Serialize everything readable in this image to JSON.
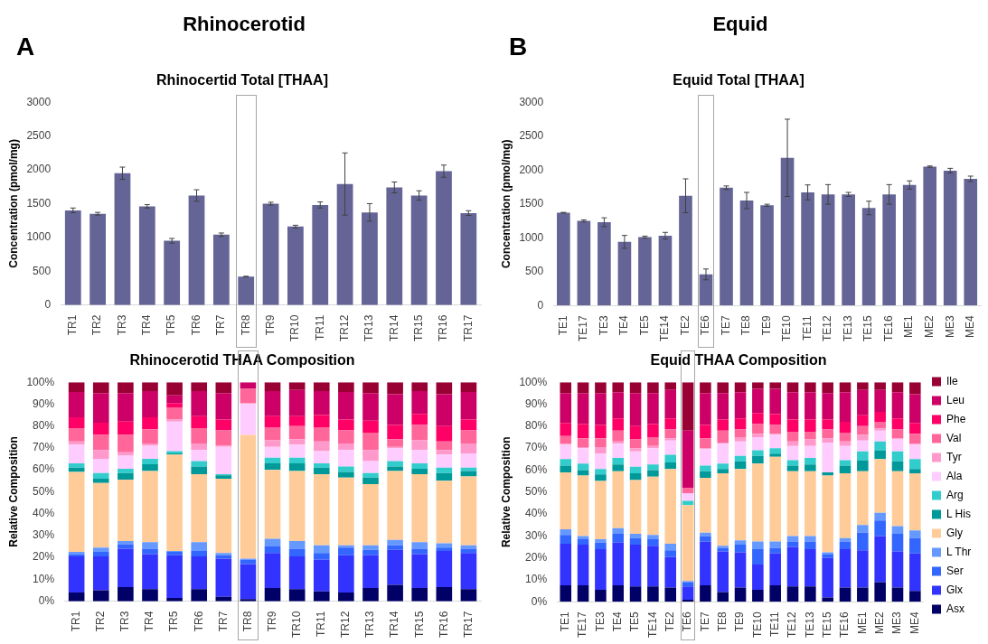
{
  "chart_data": [
    {
      "type": "bar",
      "title": "Rhinocertid Total [THAA]",
      "ylabel": "Concentration (pmol/mg)",
      "annotations": [
        "A",
        "Rhinocerotid"
      ],
      "categories": [
        "TR1",
        "TR2",
        "TR3",
        "TR4",
        "TR5",
        "TR6",
        "TR7",
        "TR8",
        "TR9",
        "TR10",
        "TR11",
        "TR12",
        "TR13",
        "TR14",
        "TR15",
        "TR16",
        "TR17"
      ],
      "values": [
        1400,
        1350,
        1950,
        1460,
        950,
        1620,
        1040,
        420,
        1500,
        1160,
        1480,
        1790,
        1370,
        1740,
        1620,
        1980,
        1360
      ],
      "errors": [
        35,
        20,
        90,
        25,
        35,
        85,
        25,
        5,
        20,
        20,
        45,
        460,
        130,
        80,
        70,
        90,
        35
      ],
      "color": "#646496",
      "ylim": [
        0,
        3000
      ],
      "yticks": [
        0,
        500,
        1000,
        1500,
        2000,
        2500,
        3000
      ]
    },
    {
      "type": "bar",
      "title": "Equid Total [THAA]",
      "ylabel": "Concentration (pmol/mg)",
      "annotations": [
        "B",
        "Equid"
      ],
      "categories": [
        "TE1",
        "TE17",
        "TE3",
        "TE4",
        "TE5",
        "TE14",
        "TE2",
        "TE6",
        "TE7",
        "TE8",
        "TE9",
        "TE10",
        "TE11",
        "TE12",
        "TE13",
        "TE15",
        "TE16",
        "ME1",
        "ME2",
        "ME3",
        "ME4"
      ],
      "values": [
        1370,
        1250,
        1230,
        940,
        1010,
        1030,
        1620,
        460,
        1740,
        1550,
        1480,
        2180,
        1670,
        1640,
        1640,
        1440,
        1640,
        1780,
        2050,
        1990,
        1870
      ],
      "errors": [
        5,
        15,
        65,
        95,
        15,
        50,
        250,
        80,
        25,
        120,
        15,
        570,
        110,
        145,
        30,
        100,
        145,
        60,
        10,
        35,
        40
      ],
      "color": "#646496",
      "ylim": [
        0,
        3000
      ],
      "yticks": [
        0,
        500,
        1000,
        1500,
        2000,
        2500,
        3000
      ]
    },
    {
      "type": "bar",
      "title": "Rhinocerotid THAA Composition",
      "ylabel": "Relative Composition",
      "stacked": true,
      "categories": [
        "TR1",
        "TR2",
        "TR3",
        "TR4",
        "TR5",
        "TR6",
        "TR7",
        "TR8",
        "TR9",
        "TR10",
        "TR11",
        "TR12",
        "TR13",
        "TR14",
        "TR15",
        "TR16",
        "TR17"
      ],
      "ylim": [
        0,
        100
      ],
      "yticks": [
        {
          "value": 0,
          "label": "0%"
        },
        {
          "value": 10,
          "label": "10%"
        },
        {
          "value": 20,
          "label": "20%"
        },
        {
          "value": 30,
          "label": "30%"
        },
        {
          "value": 40,
          "label": "40%"
        },
        {
          "value": 50,
          "label": "50%"
        },
        {
          "value": 60,
          "label": "60%"
        },
        {
          "value": 70,
          "label": "70%"
        },
        {
          "value": 80,
          "label": "80%"
        },
        {
          "value": 90,
          "label": "90%"
        },
        {
          "value": 100,
          "label": "100%"
        }
      ],
      "series": [
        {
          "color": "#000066",
          "values": [
            4,
            5,
            6.5,
            5.5,
            1.5,
            5.5,
            2,
            1,
            6,
            5.5,
            4.5,
            4,
            6,
            7.5,
            6,
            6.5,
            5.5
          ]
        },
        {
          "color": "#3333ff",
          "values": [
            16.5,
            15.5,
            17.5,
            16,
            19.5,
            15,
            17.5,
            16,
            16,
            15,
            14.5,
            17,
            15,
            16,
            15.5,
            16.5,
            16.5
          ]
        },
        {
          "color": "#3366ff",
          "values": [
            1,
            2,
            2,
            2.5,
            1.5,
            2.5,
            1.5,
            2,
            3,
            3.5,
            3,
            3.5,
            2.5,
            2,
            2.5,
            1.5,
            2
          ]
        },
        {
          "color": "#6699ff",
          "values": [
            1,
            2,
            1.5,
            3,
            0.5,
            4,
            1,
            0.5,
            3.5,
            3.5,
            3.5,
            1,
            2,
            2.5,
            3,
            2,
            1.5
          ]
        },
        {
          "color": "#ffcc99",
          "values": [
            36.5,
            29.5,
            28,
            32.5,
            44,
            31,
            34,
            56.5,
            31.5,
            32,
            32.5,
            31,
            28,
            31.5,
            31,
            28.5,
            31.5
          ]
        },
        {
          "color": "#009999",
          "values": [
            2,
            2,
            3,
            3,
            0.5,
            3.5,
            1.5,
            0,
            3,
            3.5,
            3,
            2.5,
            3,
            2,
            2.5,
            3.5,
            2.5
          ]
        },
        {
          "color": "#33cccc",
          "values": [
            2,
            2.5,
            2,
            2.5,
            1,
            2.5,
            0.5,
            0,
            2.5,
            2.5,
            2,
            2.5,
            2,
            2.5,
            2.5,
            2.5,
            1.5
          ]
        },
        {
          "color": "#ffccff",
          "values": [
            8.5,
            6.5,
            6,
            6,
            13.5,
            5,
            12.5,
            14,
            5,
            6,
            5.5,
            7.5,
            5.5,
            6,
            6,
            6,
            6.5
          ]
        },
        {
          "color": "#ff99cc",
          "values": [
            1.5,
            4,
            1.5,
            1,
            1,
            3,
            0.5,
            0.5,
            3,
            2.5,
            4.5,
            3,
            5,
            0.5,
            4.5,
            2,
            4.5
          ]
        },
        {
          "color": "#ff6699",
          "values": [
            6,
            7,
            8,
            6.5,
            5.5,
            7,
            7,
            6.5,
            6,
            6,
            6.5,
            6,
            8,
            3.5,
            7,
            4,
            6
          ]
        },
        {
          "color": "#ff0066",
          "values": [
            5,
            5.5,
            6,
            5.5,
            2,
            5.5,
            5,
            0,
            5,
            4.5,
            5.5,
            5,
            5.5,
            6.5,
            5,
            7,
            5
          ]
        },
        {
          "color": "#cc0066",
          "values": [
            11.5,
            13.5,
            13,
            12,
            3.5,
            11.5,
            12,
            3,
            11.5,
            12,
            11,
            12.5,
            12.5,
            14,
            10.5,
            14.5,
            12.5
          ]
        },
        {
          "color": "#990033",
          "values": [
            4.5,
            5,
            5,
            4,
            6,
            4,
            5,
            0,
            4,
            3.5,
            4,
            4.5,
            5,
            5.5,
            4,
            5.5,
            4.5
          ]
        }
      ]
    },
    {
      "type": "bar",
      "title": "Equid THAA Composition",
      "ylabel": "Relative Composition",
      "stacked": true,
      "legend": "right",
      "categories": [
        "TE1",
        "TE17",
        "TE3",
        "TE4",
        "TE5",
        "TE14",
        "TE2",
        "TE6",
        "TE7",
        "TE8",
        "TE9",
        "TE10",
        "TE11",
        "TE12",
        "TE13",
        "TE15",
        "TE16",
        "ME1",
        "ME2",
        "ME3",
        "ME4"
      ],
      "ylim": [
        0,
        100
      ],
      "yticks": [
        {
          "value": 0,
          "label": "0%"
        },
        {
          "value": 10,
          "label": "10%"
        },
        {
          "value": 20,
          "label": "20%"
        },
        {
          "value": 30,
          "label": "30%"
        },
        {
          "value": 40,
          "label": "40%"
        },
        {
          "value": 50,
          "label": "50%"
        },
        {
          "value": 60,
          "label": "60%"
        },
        {
          "value": 70,
          "label": "70%"
        },
        {
          "value": 80,
          "label": "80%"
        },
        {
          "value": 90,
          "label": "90%"
        },
        {
          "value": 100,
          "label": "100%"
        }
      ],
      "series": [
        {
          "name": "Asx",
          "color": "#000066",
          "values": [
            7.5,
            7.5,
            5.5,
            7.5,
            7,
            7,
            6.5,
            1,
            7.5,
            4.5,
            6.5,
            5.5,
            7.5,
            7,
            7,
            2,
            6.5,
            6.5,
            9,
            6.5,
            5
          ]
        },
        {
          "name": "Glx",
          "color": "#3333ff",
          "values": [
            19,
            18.5,
            18.5,
            19.5,
            19,
            18.5,
            14,
            6,
            20,
            18.5,
            16,
            11.5,
            14.5,
            18,
            17,
            18,
            17.5,
            17,
            21,
            16.5,
            17
          ]
        },
        {
          "name": "Ser",
          "color": "#3366ff",
          "values": [
            4,
            2.5,
            3,
            4,
            3,
            3,
            3,
            2,
            2.5,
            1.5,
            3.5,
            7,
            2.5,
            2.5,
            3.5,
            1.5,
            3.5,
            8,
            7,
            8,
            7
          ]
        },
        {
          "name": "L Thr",
          "color": "#6699ff",
          "values": [
            2.5,
            1.5,
            1.5,
            2.5,
            2,
            2,
            3,
            0.5,
            1.5,
            1,
            2,
            3.5,
            3,
            2.5,
            2.5,
            1,
            1.5,
            3.5,
            3.5,
            3.5,
            3.5
          ]
        },
        {
          "name": "Gly",
          "color": "#ffcc99",
          "values": [
            26,
            27.5,
            26.5,
            26,
            24.5,
            26.5,
            34,
            34.5,
            25,
            33,
            32.5,
            35.5,
            38.5,
            29.5,
            29.5,
            35,
            29.5,
            24.5,
            24.5,
            25,
            26
          ]
        },
        {
          "name": "L His",
          "color": "#009999",
          "values": [
            3,
            2.5,
            3,
            3,
            3,
            3,
            3,
            0,
            3,
            2,
            3.5,
            3.5,
            1.5,
            2.5,
            3,
            1.5,
            3.5,
            5,
            4,
            4.5,
            2
          ]
        },
        {
          "name": "Arg",
          "color": "#33cccc",
          "values": [
            3,
            3,
            2.5,
            3,
            3,
            2.5,
            3.5,
            2,
            2.5,
            2.5,
            2.5,
            2.5,
            2.5,
            2.5,
            3,
            0,
            2.5,
            4,
            4,
            4.5,
            4.5
          ]
        },
        {
          "name": "Ala",
          "color": "#ffccff",
          "values": [
            6.5,
            7,
            7,
            6.5,
            7,
            7.5,
            6.5,
            3.5,
            7.5,
            9,
            6.5,
            6,
            6,
            6.5,
            5.5,
            13.5,
            6.5,
            5,
            5,
            5.5,
            6.5
          ]
        },
        {
          "name": "Tyr",
          "color": "#ff99cc",
          "values": [
            0.5,
            0.5,
            3,
            1,
            1.5,
            1,
            1,
            0,
            0.5,
            0.5,
            2,
            1.5,
            0.5,
            2,
            3,
            2,
            2,
            2.5,
            1,
            0.5,
            0.5
          ]
        },
        {
          "name": "Val",
          "color": "#ff6699",
          "values": [
            3.5,
            4,
            4,
            5,
            4,
            4,
            4,
            2.5,
            4.5,
            5.5,
            3.5,
            4.5,
            4,
            4.5,
            3.5,
            4,
            4,
            4,
            3,
            4,
            4.5
          ]
        },
        {
          "name": "Phe",
          "color": "#ff0066",
          "values": [
            6,
            6.5,
            6,
            5.5,
            6,
            6,
            5,
            0,
            6,
            5,
            5,
            5,
            5,
            5.5,
            5.5,
            4.5,
            5,
            5,
            4.5,
            5,
            5
          ]
        },
        {
          "name": "Leu",
          "color": "#cc0066",
          "values": [
            13.5,
            14,
            14.5,
            12,
            15,
            14,
            13,
            26,
            14.5,
            12,
            12,
            11,
            11.5,
            12.5,
            12.5,
            12,
            13.5,
            11.5,
            10,
            12,
            13
          ]
        },
        {
          "name": "Ile",
          "color": "#990033",
          "values": [
            5,
            5,
            5,
            4.5,
            5,
            5,
            3.5,
            22,
            5,
            5,
            4.5,
            3,
            3,
            4.5,
            4.5,
            5,
            4.5,
            3.5,
            3.5,
            4.5,
            5.5
          ]
        }
      ]
    }
  ]
}
